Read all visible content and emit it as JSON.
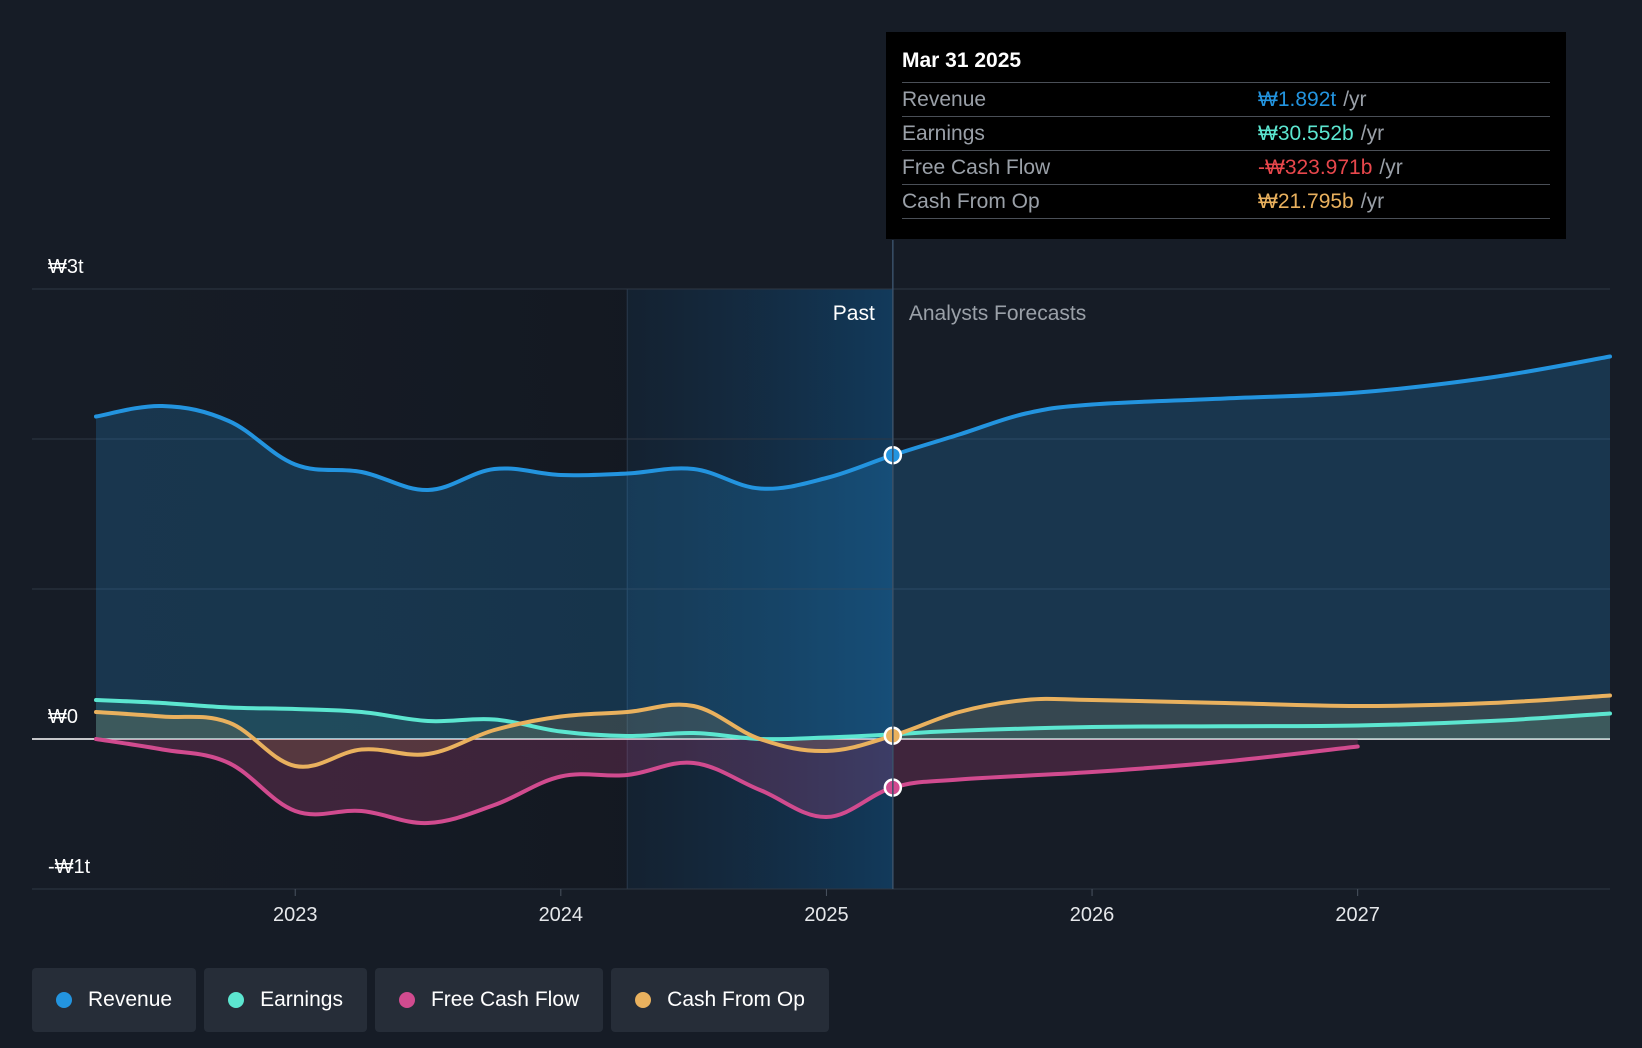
{
  "chart_data": {
    "type": "line",
    "x_unit": "year",
    "y_unit": "KRW trillions",
    "ylim": [
      -1.0,
      3.0
    ],
    "y_tick_labels": [
      {
        "value": 3.0,
        "label": "₩3t"
      },
      {
        "value": 0.0,
        "label": "₩0"
      },
      {
        "value": -1.0,
        "label": "-₩1t"
      }
    ],
    "y_gridlines": [
      3.0,
      2.0,
      1.0,
      0.0,
      -1.0
    ],
    "xlim": [
      2022.0,
      2028.0
    ],
    "x_ticks": [
      {
        "value": 2023.0,
        "label": "2023"
      },
      {
        "value": 2024.0,
        "label": "2024"
      },
      {
        "value": 2025.0,
        "label": "2025"
      },
      {
        "value": 2026.0,
        "label": "2026"
      },
      {
        "value": 2027.0,
        "label": "2027"
      }
    ],
    "highlight_start": 2024.25,
    "divider_date": 2025.25,
    "past_label": "Past",
    "forecast_label": "Analysts Forecasts",
    "series": [
      {
        "name": "Revenue",
        "color": "#2394df",
        "points": [
          [
            2022.25,
            2.15
          ],
          [
            2022.5,
            2.22
          ],
          [
            2022.75,
            2.12
          ],
          [
            2023.0,
            1.83
          ],
          [
            2023.25,
            1.78
          ],
          [
            2023.5,
            1.66
          ],
          [
            2023.75,
            1.8
          ],
          [
            2024.0,
            1.76
          ],
          [
            2024.25,
            1.77
          ],
          [
            2024.5,
            1.8
          ],
          [
            2024.75,
            1.67
          ],
          [
            2025.0,
            1.74
          ],
          [
            2025.25,
            1.892
          ],
          [
            2025.5,
            2.03
          ],
          [
            2025.75,
            2.17
          ],
          [
            2026.0,
            2.23
          ],
          [
            2026.5,
            2.27
          ],
          [
            2027.0,
            2.31
          ],
          [
            2027.5,
            2.41
          ],
          [
            2027.95,
            2.55
          ]
        ],
        "marker": {
          "x": 2025.25,
          "y": 1.892
        }
      },
      {
        "name": "Earnings",
        "color": "#5ce6d0",
        "points": [
          [
            2022.25,
            0.26
          ],
          [
            2022.5,
            0.24
          ],
          [
            2022.75,
            0.21
          ],
          [
            2023.0,
            0.2
          ],
          [
            2023.25,
            0.18
          ],
          [
            2023.5,
            0.12
          ],
          [
            2023.75,
            0.13
          ],
          [
            2024.0,
            0.05
          ],
          [
            2024.25,
            0.02
          ],
          [
            2024.5,
            0.04
          ],
          [
            2024.75,
            0.0
          ],
          [
            2025.0,
            0.01
          ],
          [
            2025.25,
            0.031
          ],
          [
            2025.5,
            0.055
          ],
          [
            2026.0,
            0.08
          ],
          [
            2026.5,
            0.085
          ],
          [
            2027.0,
            0.09
          ],
          [
            2027.5,
            0.12
          ],
          [
            2027.95,
            0.17
          ]
        ],
        "marker": null
      },
      {
        "name": "Free Cash Flow",
        "color": "#d14b8f",
        "points": [
          [
            2022.25,
            0.0
          ],
          [
            2022.5,
            -0.07
          ],
          [
            2022.75,
            -0.16
          ],
          [
            2023.0,
            -0.48
          ],
          [
            2023.25,
            -0.48
          ],
          [
            2023.5,
            -0.56
          ],
          [
            2023.75,
            -0.44
          ],
          [
            2024.0,
            -0.25
          ],
          [
            2024.25,
            -0.24
          ],
          [
            2024.5,
            -0.16
          ],
          [
            2024.75,
            -0.34
          ],
          [
            2025.0,
            -0.52
          ],
          [
            2025.25,
            -0.324
          ],
          [
            2025.5,
            -0.27
          ],
          [
            2026.0,
            -0.22
          ],
          [
            2026.5,
            -0.15
          ],
          [
            2027.0,
            -0.05
          ]
        ],
        "marker": {
          "x": 2025.25,
          "y": -0.324
        }
      },
      {
        "name": "Cash From Op",
        "color": "#e9b15e",
        "points": [
          [
            2022.25,
            0.18
          ],
          [
            2022.5,
            0.15
          ],
          [
            2022.75,
            0.11
          ],
          [
            2023.0,
            -0.18
          ],
          [
            2023.25,
            -0.07
          ],
          [
            2023.5,
            -0.1
          ],
          [
            2023.75,
            0.06
          ],
          [
            2024.0,
            0.15
          ],
          [
            2024.25,
            0.18
          ],
          [
            2024.5,
            0.22
          ],
          [
            2024.75,
            0.0
          ],
          [
            2025.0,
            -0.08
          ],
          [
            2025.25,
            0.022
          ],
          [
            2025.5,
            0.18
          ],
          [
            2025.75,
            0.26
          ],
          [
            2026.0,
            0.26
          ],
          [
            2026.5,
            0.24
          ],
          [
            2027.0,
            0.22
          ],
          [
            2027.5,
            0.24
          ],
          [
            2027.95,
            0.29
          ]
        ],
        "marker": {
          "x": 2025.25,
          "y": 0.022
        }
      }
    ],
    "tooltip": {
      "date": "Mar 31 2025",
      "rows": [
        {
          "label": "Revenue",
          "value": "₩1.892t",
          "unit": "/yr",
          "color": "#2394df"
        },
        {
          "label": "Earnings",
          "value": "₩30.552b",
          "unit": "/yr",
          "color": "#5ce6d0"
        },
        {
          "label": "Free Cash Flow",
          "value": "-₩323.971b",
          "unit": "/yr",
          "color": "#e8474c"
        },
        {
          "label": "Cash From Op",
          "value": "₩21.795b",
          "unit": "/yr",
          "color": "#e9b15e"
        }
      ]
    }
  },
  "legend": [
    {
      "label": "Revenue",
      "color": "#2394df"
    },
    {
      "label": "Earnings",
      "color": "#5ce6d0"
    },
    {
      "label": "Free Cash Flow",
      "color": "#d14b8f"
    },
    {
      "label": "Cash From Op",
      "color": "#e9b15e"
    }
  ]
}
